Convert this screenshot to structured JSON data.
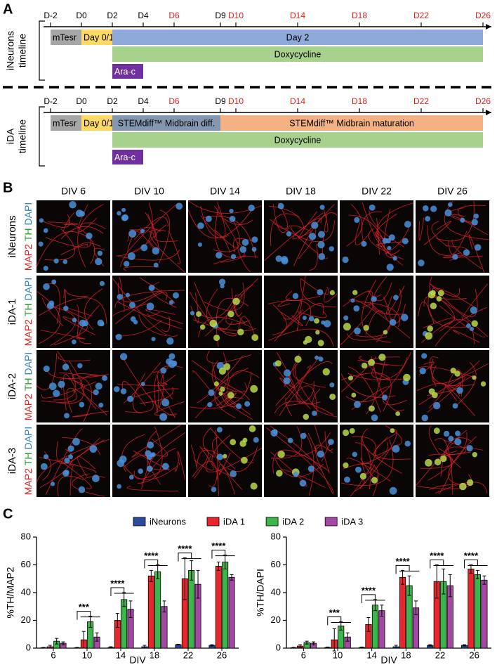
{
  "panel_labels": [
    "A",
    "B",
    "C"
  ],
  "panel_a": {
    "xlim": [
      -2,
      26
    ],
    "ticks": [
      {
        "value": -2,
        "label": "D-2",
        "color": "#000000"
      },
      {
        "value": 0,
        "label": "D0",
        "color": "#000000"
      },
      {
        "value": 2,
        "label": "D2",
        "color": "#000000"
      },
      {
        "value": 4,
        "label": "D4",
        "color": "#000000"
      },
      {
        "value": 6,
        "label": "D6",
        "color": "#e02020"
      },
      {
        "value": 9,
        "label": "D9",
        "color": "#000000"
      },
      {
        "value": 10,
        "label": "D10",
        "color": "#e02020"
      },
      {
        "value": 14,
        "label": "D14",
        "color": "#e02020"
      },
      {
        "value": 18,
        "label": "D18",
        "color": "#e02020"
      },
      {
        "value": 22,
        "label": "D22",
        "color": "#e02020"
      },
      {
        "value": 26,
        "label": "D26",
        "color": "#e02020"
      }
    ],
    "timelines": [
      {
        "name": [
          "iNeurons",
          "timeline"
        ],
        "rows": [
          [
            {
              "label": "mTesr",
              "start": -2,
              "end": 0,
              "color": "#a6a6a6",
              "text_color": "#000000"
            },
            {
              "label": "Day 0/1",
              "start": 0,
              "end": 2,
              "color": "#ffd966",
              "text_color": "#000000"
            },
            {
              "label": "Day 2",
              "start": 2,
              "end": 26,
              "color": "#8eaadb",
              "text_color": "#000000"
            }
          ],
          [
            {
              "label": "Doxycycline",
              "start": 2,
              "end": 26,
              "color": "#a9d18e",
              "text_color": "#000000"
            }
          ],
          [
            {
              "label": "Ara-c",
              "start": 2,
              "end": 4,
              "color": "#7030a0",
              "text_color": "#ffffff"
            }
          ]
        ]
      },
      {
        "name": [
          "iDA",
          "timeline"
        ],
        "rows": [
          [
            {
              "label": "mTesr",
              "start": -2,
              "end": 0,
              "color": "#a6a6a6",
              "text_color": "#000000"
            },
            {
              "label": "Day 0/1",
              "start": 0,
              "end": 2,
              "color": "#ffd966",
              "text_color": "#000000"
            },
            {
              "label": "STEMdiff™ Midbrain diff.",
              "start": 2,
              "end": 9,
              "color": "#8497b0",
              "text_color": "#000000"
            },
            {
              "label": "STEMdiff™ Midbrain maturation",
              "start": 9,
              "end": 26,
              "color": "#f4b183",
              "text_color": "#000000"
            }
          ],
          [
            {
              "label": "Doxycycline",
              "start": 2,
              "end": 26,
              "color": "#a9d18e",
              "text_color": "#000000"
            }
          ],
          [
            {
              "label": "Ara-c",
              "start": 2,
              "end": 4,
              "color": "#7030a0",
              "text_color": "#ffffff"
            }
          ]
        ]
      }
    ]
  },
  "panel_b": {
    "columns": [
      "DIV 6",
      "DIV 10",
      "DIV 14",
      "DIV 18",
      "DIV 22",
      "DIV 26"
    ],
    "rows": [
      {
        "name": "iNeurons",
        "stain": [
          {
            "text": "MAP2",
            "color": "#e02020"
          },
          {
            "text": "TH",
            "color": "#2a9d2a"
          },
          {
            "text": "DAPI",
            "color": "#2f80c0"
          }
        ]
      },
      {
        "name": "iDA-1",
        "stain": [
          {
            "text": "MAP2",
            "color": "#e02020"
          },
          {
            "text": "TH",
            "color": "#2a9d2a"
          },
          {
            "text": "DAPI",
            "color": "#2f80c0"
          }
        ]
      },
      {
        "name": "iDA-2",
        "stain": [
          {
            "text": "MAP2",
            "color": "#e02020"
          },
          {
            "text": "TH",
            "color": "#2a9d2a"
          },
          {
            "text": "DAPI",
            "color": "#2f80c0"
          }
        ]
      },
      {
        "name": "iDA-3",
        "stain": [
          {
            "text": "MAP2",
            "color": "#e02020"
          },
          {
            "text": "TH",
            "color": "#2a9d2a"
          },
          {
            "text": "DAPI",
            "color": "#2f80c0"
          }
        ]
      }
    ]
  },
  "chart_data": [
    {
      "type": "bar",
      "ylabel": "%TH/MAP2",
      "xlabel": "DIV",
      "categories": [
        "6",
        "10",
        "14",
        "18",
        "22",
        "26"
      ],
      "ylim": [
        0,
        80
      ],
      "yticks": [
        0,
        20,
        40,
        60,
        80
      ],
      "series": [
        {
          "name": "iNeurons",
          "color": "#2b4aa0",
          "values": [
            0.3,
            0.3,
            0.5,
            1,
            2.5,
            2
          ],
          "errors": [
            0.3,
            0.3,
            0.5,
            1,
            0.3,
            0.5
          ]
        },
        {
          "name": "iDA 1",
          "color": "#e8262b",
          "values": [
            1,
            6,
            20,
            52,
            50,
            59
          ],
          "errors": [
            1,
            6,
            5,
            4,
            15,
            3
          ]
        },
        {
          "name": "iDA 2",
          "color": "#3cb54a",
          "values": [
            5,
            19,
            35,
            55,
            56,
            62
          ],
          "errors": [
            2,
            4,
            5,
            5,
            7,
            5
          ]
        },
        {
          "name": "iDA 3",
          "color": "#a349a4",
          "values": [
            3.5,
            8,
            28,
            30,
            46,
            51
          ],
          "errors": [
            1,
            3,
            6,
            4,
            10,
            2
          ]
        }
      ],
      "annotations": [
        {
          "category": "10",
          "text": "***"
        },
        {
          "category": "14",
          "text": "****"
        },
        {
          "category": "18",
          "text": "****"
        },
        {
          "category": "22",
          "text": "****"
        },
        {
          "category": "26",
          "text": "****"
        }
      ]
    },
    {
      "type": "bar",
      "ylabel": "%TH/DAPI",
      "xlabel": "DIV",
      "categories": [
        "6",
        "10",
        "14",
        "18",
        "22",
        "26"
      ],
      "ylim": [
        0,
        80
      ],
      "yticks": [
        0,
        20,
        40,
        60,
        80
      ],
      "series": [
        {
          "color": "#2b4aa0",
          "values": [
            0.3,
            0.5,
            0.5,
            1,
            2,
            2
          ],
          "errors": [
            0.3,
            0.3,
            0.3,
            1,
            0.5,
            0.5
          ]
        },
        {
          "color": "#e8262b",
          "values": [
            1.5,
            6,
            17,
            51,
            48,
            57
          ],
          "errors": [
            1,
            8,
            5,
            5,
            12,
            3
          ]
        },
        {
          "color": "#3cb54a",
          "values": [
            4,
            16,
            31,
            45,
            48,
            53
          ],
          "errors": [
            1,
            3,
            4,
            7,
            9,
            3
          ]
        },
        {
          "color": "#a349a4",
          "values": [
            3.5,
            8,
            27,
            29,
            45,
            49
          ],
          "errors": [
            1,
            3,
            4,
            5,
            8,
            3
          ]
        }
      ],
      "annotations": [
        {
          "category": "10",
          "text": "***"
        },
        {
          "category": "14",
          "text": "****"
        },
        {
          "category": "18",
          "text": "****"
        },
        {
          "category": "22",
          "text": "****"
        },
        {
          "category": "26",
          "text": "****"
        }
      ]
    }
  ]
}
